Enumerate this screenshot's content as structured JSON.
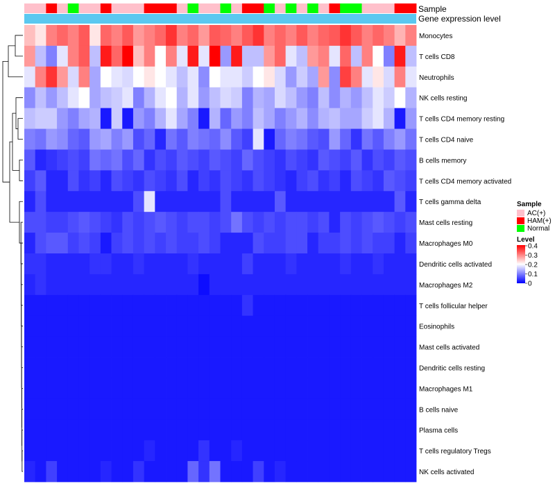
{
  "chart_data": {
    "type": "heatmap",
    "annotation_labels": {
      "sample": "Sample",
      "gene": "Gene expression level"
    },
    "sample_groups": [
      "AC",
      "AC",
      "HAM",
      "AC",
      "Normal",
      "AC",
      "AC",
      "HAM",
      "AC",
      "AC",
      "AC",
      "HAM",
      "HAM",
      "HAM",
      "AC",
      "Normal",
      "AC",
      "AC",
      "Normal",
      "AC",
      "HAM",
      "HAM",
      "Normal",
      "AC",
      "Normal",
      "AC",
      "Normal",
      "AC",
      "HAM",
      "Normal",
      "Normal",
      "AC",
      "AC",
      "AC",
      "HAM",
      "HAM"
    ],
    "rows": [
      "Monocytes",
      "T cells CD8",
      "Neutrophils",
      "NK cells resting",
      "T cells CD4 memory resting",
      "T cells CD4 naive",
      "B cells memory",
      "T cells CD4 memory activated",
      "T cells gamma delta",
      "Mast cells resting",
      "Macrophages M0",
      "Dendritic cells activated",
      "Macrophages M2",
      "T cells follicular helper",
      "Eosinophils",
      "Mast cells activated",
      "Dendritic cells resting",
      "Macrophages M1",
      "B cells naive",
      "Plasma cells",
      "T cells regulatory  Tregs",
      "NK cells activated"
    ],
    "values": [
      [
        0.25,
        0.22,
        0.3,
        0.32,
        0.3,
        0.33,
        0.22,
        0.32,
        0.3,
        0.33,
        0.28,
        0.3,
        0.32,
        0.36,
        0.3,
        0.32,
        0.28,
        0.33,
        0.32,
        0.3,
        0.33,
        0.36,
        0.3,
        0.32,
        0.3,
        0.33,
        0.3,
        0.32,
        0.33,
        0.36,
        0.33,
        0.3,
        0.32,
        0.3,
        0.26,
        0.3
      ],
      [
        0.28,
        0.15,
        0.1,
        0.18,
        0.3,
        0.33,
        0.15,
        0.38,
        0.32,
        0.4,
        0.25,
        0.3,
        0.2,
        0.3,
        0.18,
        0.38,
        0.18,
        0.4,
        0.12,
        0.38,
        0.15,
        0.15,
        0.28,
        0.32,
        0.18,
        0.15,
        0.28,
        0.3,
        0.18,
        0.32,
        0.15,
        0.3,
        0.2,
        0.1,
        0.38,
        0.15
      ],
      [
        0.18,
        0.3,
        0.36,
        0.28,
        0.17,
        0.3,
        0.13,
        0.2,
        0.18,
        0.17,
        0.2,
        0.22,
        0.2,
        0.18,
        0.15,
        0.18,
        0.11,
        0.2,
        0.18,
        0.18,
        0.16,
        0.2,
        0.22,
        0.17,
        0.12,
        0.16,
        0.13,
        0.28,
        0.11,
        0.35,
        0.3,
        0.18,
        0.22,
        0.17,
        0.3,
        0.18
      ],
      [
        0.11,
        0.15,
        0.12,
        0.15,
        0.18,
        0.2,
        0.13,
        0.15,
        0.16,
        0.18,
        0.1,
        0.14,
        0.18,
        0.2,
        0.14,
        0.18,
        0.12,
        0.15,
        0.17,
        0.16,
        0.1,
        0.14,
        0.13,
        0.17,
        0.15,
        0.12,
        0.1,
        0.15,
        0.11,
        0.14,
        0.12,
        0.15,
        0.18,
        0.16,
        0.2,
        0.14
      ],
      [
        0.15,
        0.16,
        0.16,
        0.12,
        0.1,
        0.13,
        0.14,
        0.02,
        0.16,
        0.02,
        0.12,
        0.1,
        0.14,
        0.18,
        0.13,
        0.1,
        0.02,
        0.14,
        0.08,
        0.12,
        0.1,
        0.15,
        0.13,
        0.1,
        0.12,
        0.14,
        0.11,
        0.14,
        0.15,
        0.13,
        0.13,
        0.16,
        0.18,
        0.14,
        0.02,
        0.12
      ],
      [
        0.1,
        0.09,
        0.12,
        0.11,
        0.08,
        0.07,
        0.12,
        0.13,
        0.1,
        0.12,
        0.06,
        0.08,
        0.03,
        0.09,
        0.07,
        0.1,
        0.09,
        0.08,
        0.11,
        0.07,
        0.05,
        0.18,
        0.02,
        0.08,
        0.1,
        0.09,
        0.07,
        0.06,
        0.12,
        0.08,
        0.04,
        0.09,
        0.07,
        0.1,
        0.12,
        0.09
      ],
      [
        0.07,
        0.03,
        0.04,
        0.05,
        0.06,
        0.05,
        0.09,
        0.08,
        0.09,
        0.06,
        0.08,
        0.04,
        0.06,
        0.05,
        0.07,
        0.06,
        0.05,
        0.07,
        0.06,
        0.05,
        0.08,
        0.06,
        0.05,
        0.04,
        0.06,
        0.05,
        0.04,
        0.07,
        0.06,
        0.05,
        0.07,
        0.04,
        0.06,
        0.05,
        0.07,
        0.06
      ],
      [
        0.05,
        0.07,
        0.03,
        0.03,
        0.06,
        0.04,
        0.05,
        0.03,
        0.06,
        0.05,
        0.04,
        0.06,
        0.05,
        0.04,
        0.06,
        0.03,
        0.05,
        0.04,
        0.06,
        0.05,
        0.04,
        0.06,
        0.05,
        0.04,
        0.03,
        0.05,
        0.06,
        0.04,
        0.05,
        0.03,
        0.06,
        0.05,
        0.04,
        0.07,
        0.06,
        0.05
      ],
      [
        0.03,
        0.06,
        0.03,
        0.03,
        0.03,
        0.03,
        0.03,
        0.03,
        0.03,
        0.03,
        0.06,
        0.18,
        0.03,
        0.03,
        0.03,
        0.03,
        0.03,
        0.03,
        0.06,
        0.03,
        0.03,
        0.03,
        0.03,
        0.07,
        0.03,
        0.03,
        0.03,
        0.03,
        0.03,
        0.03,
        0.03,
        0.03,
        0.03,
        0.03,
        0.07,
        0.03
      ],
      [
        0.06,
        0.06,
        0.05,
        0.05,
        0.06,
        0.07,
        0.06,
        0.05,
        0.04,
        0.06,
        0.05,
        0.06,
        0.07,
        0.06,
        0.05,
        0.06,
        0.06,
        0.05,
        0.06,
        0.09,
        0.06,
        0.05,
        0.06,
        0.05,
        0.06,
        0.06,
        0.05,
        0.06,
        0.03,
        0.06,
        0.05,
        0.06,
        0.07,
        0.06,
        0.05,
        0.06
      ],
      [
        0.03,
        0.06,
        0.07,
        0.07,
        0.05,
        0.06,
        0.05,
        0.02,
        0.05,
        0.06,
        0.05,
        0.06,
        0.05,
        0.06,
        0.05,
        0.05,
        0.06,
        0.05,
        0.03,
        0.03,
        0.03,
        0.06,
        0.05,
        0.05,
        0.06,
        0.06,
        0.03,
        0.05,
        0.05,
        0.06,
        0.05,
        0.06,
        0.05,
        0.05,
        0.03,
        0.05
      ],
      [
        0.04,
        0.04,
        0.03,
        0.03,
        0.03,
        0.03,
        0.04,
        0.04,
        0.03,
        0.03,
        0.04,
        0.03,
        0.03,
        0.03,
        0.03,
        0.04,
        0.03,
        0.03,
        0.03,
        0.03,
        0.05,
        0.03,
        0.03,
        0.03,
        0.04,
        0.03,
        0.03,
        0.03,
        0.03,
        0.04,
        0.03,
        0.03,
        0.04,
        0.03,
        0.03,
        0.03
      ],
      [
        0.03,
        0.04,
        0.03,
        0.03,
        0.03,
        0.03,
        0.03,
        0.03,
        0.03,
        0.03,
        0.03,
        0.03,
        0.03,
        0.03,
        0.03,
        0.03,
        0.01,
        0.03,
        0.03,
        0.03,
        0.03,
        0.03,
        0.03,
        0.03,
        0.03,
        0.03,
        0.03,
        0.03,
        0.03,
        0.03,
        0.03,
        0.03,
        0.03,
        0.03,
        0.03,
        0.03
      ],
      [
        0.02,
        0.02,
        0.02,
        0.02,
        0.02,
        0.02,
        0.02,
        0.02,
        0.02,
        0.02,
        0.02,
        0.02,
        0.02,
        0.02,
        0.02,
        0.02,
        0.02,
        0.02,
        0.02,
        0.02,
        0.04,
        0.02,
        0.02,
        0.02,
        0.02,
        0.02,
        0.02,
        0.02,
        0.02,
        0.02,
        0.02,
        0.02,
        0.02,
        0.02,
        0.02,
        0.02
      ],
      [
        0.02,
        0.02,
        0.02,
        0.02,
        0.02,
        0.02,
        0.02,
        0.02,
        0.02,
        0.02,
        0.02,
        0.02,
        0.02,
        0.02,
        0.02,
        0.02,
        0.02,
        0.02,
        0.02,
        0.02,
        0.02,
        0.02,
        0.02,
        0.02,
        0.02,
        0.02,
        0.02,
        0.02,
        0.02,
        0.02,
        0.02,
        0.02,
        0.02,
        0.02,
        0.02,
        0.02
      ],
      [
        0.02,
        0.02,
        0.02,
        0.02,
        0.02,
        0.02,
        0.02,
        0.02,
        0.02,
        0.02,
        0.02,
        0.02,
        0.02,
        0.02,
        0.02,
        0.02,
        0.02,
        0.02,
        0.02,
        0.02,
        0.02,
        0.02,
        0.02,
        0.02,
        0.02,
        0.02,
        0.02,
        0.02,
        0.02,
        0.02,
        0.02,
        0.02,
        0.02,
        0.02,
        0.02,
        0.02
      ],
      [
        0.02,
        0.02,
        0.02,
        0.02,
        0.02,
        0.02,
        0.02,
        0.02,
        0.02,
        0.02,
        0.02,
        0.02,
        0.02,
        0.02,
        0.02,
        0.02,
        0.02,
        0.02,
        0.02,
        0.02,
        0.02,
        0.02,
        0.02,
        0.02,
        0.02,
        0.02,
        0.02,
        0.02,
        0.02,
        0.02,
        0.02,
        0.02,
        0.02,
        0.02,
        0.02,
        0.02
      ],
      [
        0.02,
        0.02,
        0.02,
        0.02,
        0.02,
        0.02,
        0.02,
        0.02,
        0.02,
        0.02,
        0.02,
        0.02,
        0.02,
        0.02,
        0.02,
        0.02,
        0.02,
        0.02,
        0.02,
        0.02,
        0.02,
        0.02,
        0.02,
        0.02,
        0.02,
        0.02,
        0.02,
        0.02,
        0.02,
        0.02,
        0.02,
        0.02,
        0.02,
        0.02,
        0.02,
        0.02
      ],
      [
        0.02,
        0.02,
        0.02,
        0.02,
        0.02,
        0.02,
        0.02,
        0.02,
        0.02,
        0.02,
        0.02,
        0.02,
        0.02,
        0.02,
        0.02,
        0.02,
        0.02,
        0.02,
        0.02,
        0.02,
        0.02,
        0.02,
        0.02,
        0.02,
        0.02,
        0.02,
        0.02,
        0.02,
        0.02,
        0.02,
        0.02,
        0.02,
        0.02,
        0.02,
        0.02,
        0.02
      ],
      [
        0.02,
        0.02,
        0.02,
        0.02,
        0.02,
        0.02,
        0.02,
        0.02,
        0.02,
        0.02,
        0.02,
        0.02,
        0.02,
        0.02,
        0.02,
        0.02,
        0.02,
        0.02,
        0.02,
        0.02,
        0.02,
        0.02,
        0.02,
        0.02,
        0.02,
        0.02,
        0.02,
        0.02,
        0.02,
        0.02,
        0.02,
        0.02,
        0.02,
        0.02,
        0.02,
        0.02
      ],
      [
        0.02,
        0.02,
        0.02,
        0.02,
        0.02,
        0.02,
        0.02,
        0.02,
        0.02,
        0.02,
        0.02,
        0.03,
        0.02,
        0.02,
        0.02,
        0.02,
        0.04,
        0.02,
        0.02,
        0.03,
        0.02,
        0.02,
        0.02,
        0.02,
        0.02,
        0.02,
        0.02,
        0.02,
        0.02,
        0.02,
        0.02,
        0.02,
        0.02,
        0.02,
        0.02,
        0.02
      ],
      [
        0.03,
        0.02,
        0.05,
        0.02,
        0.02,
        0.02,
        0.02,
        0.03,
        0.02,
        0.02,
        0.04,
        0.02,
        0.02,
        0.02,
        0.02,
        0.08,
        0.04,
        0.09,
        0.02,
        0.02,
        0.02,
        0.05,
        0.02,
        0.03,
        0.02,
        0.02,
        0.02,
        0.02,
        0.02,
        0.02,
        0.02,
        0.02,
        0.02,
        0.02,
        0.02,
        0.02
      ]
    ],
    "legend": {
      "sample_title": "Sample",
      "groups": [
        {
          "key": "AC",
          "label": "AC(+)",
          "color": "#ffc0cb"
        },
        {
          "key": "HAM",
          "label": "HAM(+)",
          "color": "#ff0000"
        },
        {
          "key": "Normal",
          "label": "Normal",
          "color": "#00ff00"
        }
      ],
      "level_title": "Level",
      "level_ticks": [
        "0.4",
        "0.3",
        "0.2",
        "0.1",
        "0"
      ],
      "level_range": [
        0,
        0.4
      ]
    },
    "colors": {
      "low": "#0000ff",
      "mid": "#ffffff",
      "high": "#ff0000",
      "gene_bar": "#5bc8f0"
    }
  }
}
